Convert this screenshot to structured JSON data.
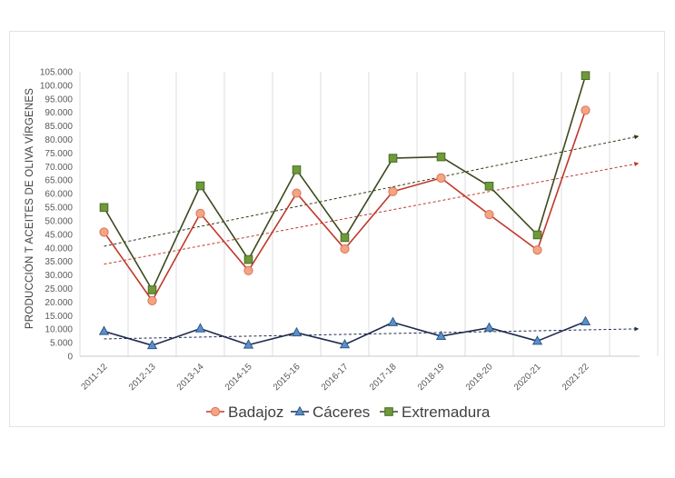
{
  "chart_data": {
    "type": "line",
    "title": "",
    "xlabel": "",
    "ylabel": "PRODUCCIÓN T ACEITES DE OLIVA VÍRGENES",
    "categories": [
      "2011-12",
      "2012-13",
      "2013-14",
      "2014-15",
      "2015-16",
      "2016-17",
      "2017-18",
      "2018-19",
      "2019-20",
      "2020-21",
      "2021-22"
    ],
    "ylim": [
      0,
      105000
    ],
    "yticks": [
      {
        "value": 0,
        "label": "0"
      },
      {
        "value": 5000,
        "label": "5.000"
      },
      {
        "value": 10000,
        "label": "10.000"
      },
      {
        "value": 15000,
        "label": "15.000"
      },
      {
        "value": 20000,
        "label": "20.000"
      },
      {
        "value": 25000,
        "label": "25.000"
      },
      {
        "value": 30000,
        "label": "30.000"
      },
      {
        "value": 35000,
        "label": "35.000"
      },
      {
        "value": 40000,
        "label": "40.000"
      },
      {
        "value": 45000,
        "label": "45.000"
      },
      {
        "value": 50000,
        "label": "50.000"
      },
      {
        "value": 55000,
        "label": "55.000"
      },
      {
        "value": 60000,
        "label": "60.000"
      },
      {
        "value": 65000,
        "label": "65.000"
      },
      {
        "value": 70000,
        "label": "70.000"
      },
      {
        "value": 75000,
        "label": "75.000"
      },
      {
        "value": 80000,
        "label": "80.000"
      },
      {
        "value": 85000,
        "label": "85.000"
      },
      {
        "value": 90000,
        "label": "90.000"
      },
      {
        "value": 95000,
        "label": "95.000"
      },
      {
        "value": 100000,
        "label": "100.000"
      },
      {
        "value": 105000,
        "label": "105.000"
      }
    ],
    "grid": "vertical",
    "legend_position": "bottom",
    "series": [
      {
        "name": "Badajoz",
        "marker": "circle",
        "color": "#c0392b",
        "marker_fill": "#f4a582",
        "marker_stroke": "#d9745a",
        "values": [
          45800,
          20500,
          52700,
          31600,
          60200,
          39600,
          60800,
          65800,
          52300,
          39200,
          90800
        ],
        "trend": {
          "start": 34000,
          "end": 71200,
          "color": "#c0392b"
        }
      },
      {
        "name": "Cáceres",
        "marker": "triangle",
        "color": "#1f2d4d",
        "marker_fill": "#5b8fc8",
        "marker_stroke": "#2e5a8a",
        "values": [
          9200,
          4000,
          10200,
          4200,
          8700,
          4300,
          12500,
          7400,
          10500,
          5600,
          12800
        ],
        "trend": {
          "start": 6400,
          "end": 10100,
          "color": "#1f2d4d"
        }
      },
      {
        "name": "Extremadura",
        "marker": "square",
        "color": "#3b4a1e",
        "marker_fill": "#6e9a3a",
        "marker_stroke": "#4a6b24",
        "values": [
          54900,
          24500,
          62900,
          35700,
          68800,
          43800,
          73100,
          73600,
          62800,
          44800,
          103600
        ],
        "trend": {
          "start": 40600,
          "end": 81200,
          "color": "#2d3a14"
        }
      }
    ]
  }
}
